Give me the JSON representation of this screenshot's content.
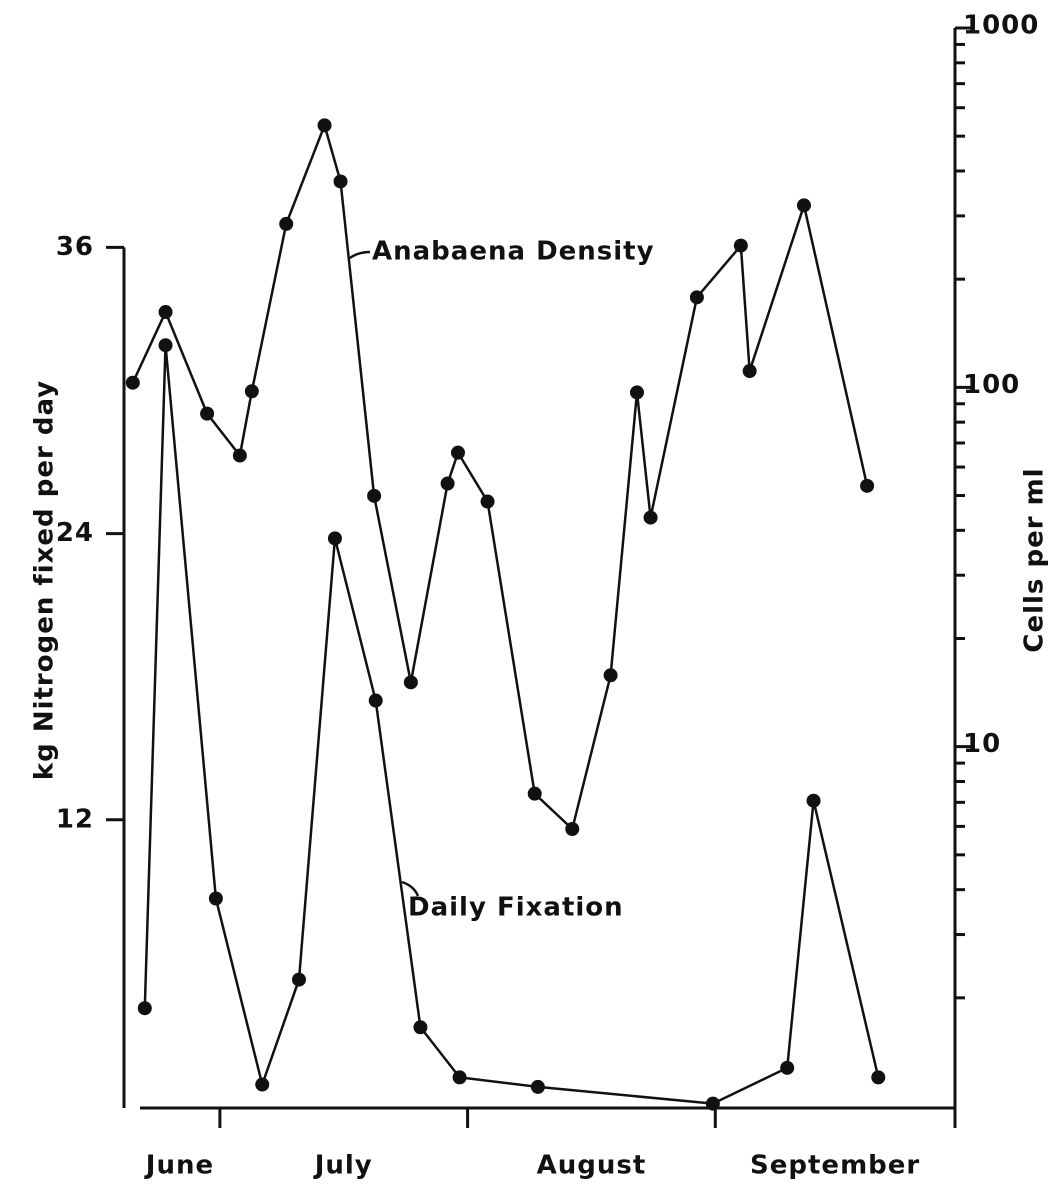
{
  "chart_data": {
    "type": "line",
    "y_label": "kg Nitrogen fixed per day",
    "y2_label": "Cells per ml",
    "months": [
      "June",
      "July",
      "August",
      "September"
    ],
    "xlim": [
      18,
      122
    ],
    "xticks": [
      30,
      61,
      92,
      122
    ],
    "ylim": [
      0,
      45.2
    ],
    "yticks": [
      12,
      24,
      36
    ],
    "y2lim": [
      1,
      1000
    ],
    "y2scale": "log",
    "y2ticks": [
      10,
      100,
      1000
    ],
    "y2minor": [
      2,
      3,
      4,
      5,
      6,
      7,
      8,
      9,
      20,
      30,
      40,
      50,
      60,
      70,
      80,
      90,
      200,
      300,
      400,
      500,
      600,
      700,
      800,
      900
    ],
    "series": [
      {
        "name": "Anabaena Density",
        "color": "#111111",
        "axis": "y2",
        "x": [
          19.1,
          23.2,
          28.4,
          32.5,
          34.0,
          38.3,
          43.1,
          45.1,
          49.3,
          53.9,
          58.5,
          59.8,
          63.5,
          69.4,
          74.1,
          78.9,
          82.2,
          83.9,
          89.7,
          95.2,
          96.3,
          103.1,
          111.0
        ],
        "values": [
          103,
          162,
          84.5,
          64.6,
          97.5,
          285,
          536,
          374,
          49.9,
          15.1,
          54,
          65.8,
          48.1,
          7.4,
          5.9,
          15.8,
          96.8,
          43.4,
          178,
          248,
          111,
          321,
          53.2
        ]
      },
      {
        "name": "Daily Fixation",
        "color": "#111111",
        "x": [
          20.6,
          23.2,
          29.5,
          35.3,
          39.9,
          44.4,
          49.5,
          55.1,
          60.0,
          69.8,
          91.7,
          101.0,
          104.3,
          112.4
        ],
        "values": [
          4.1,
          31.9,
          8.7,
          0.9,
          5.3,
          23.8,
          17.0,
          3.3,
          1.2,
          0.8,
          0.1,
          1.6,
          12.8,
          1.2
        ]
      }
    ]
  }
}
